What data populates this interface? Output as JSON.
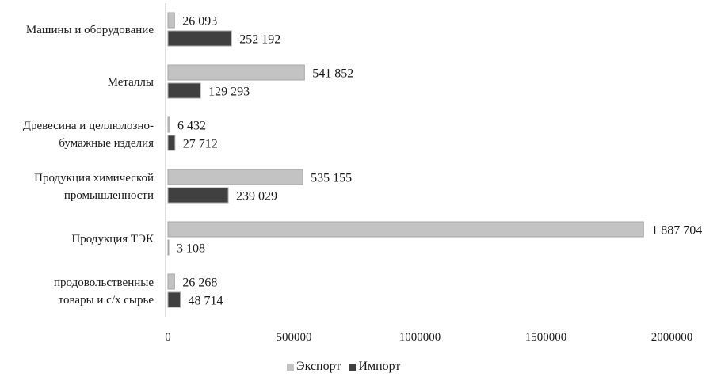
{
  "chart_data": {
    "type": "bar",
    "orientation": "horizontal",
    "categories": [
      [
        "Машины и оборудование"
      ],
      [
        "Металлы"
      ],
      [
        "Древесина и целлюлозно-",
        "бумажные изделия"
      ],
      [
        "Продукция химической",
        "промышленности"
      ],
      [
        "Продукция ТЭК"
      ],
      [
        "продовольственные",
        "товары и с/х сырье"
      ]
    ],
    "series": [
      {
        "name": "Экспорт",
        "color": "#c3c3c3",
        "values": [
          26093,
          541852,
          6432,
          535155,
          1887704,
          26268
        ],
        "labels": [
          "26 093",
          "541 852",
          "6 432",
          "535 155",
          "1 887 704",
          "26 268"
        ]
      },
      {
        "name": "Импорт",
        "color": "#404040",
        "values": [
          252192,
          129293,
          27712,
          239029,
          3108,
          48714
        ],
        "labels": [
          "252 192",
          "129 293",
          "27 712",
          "239 029",
          "3 108",
          "48 714"
        ]
      }
    ],
    "xlim": [
      0,
      2000000
    ],
    "xticks": [
      "0",
      "500000",
      "1000000",
      "1500000",
      "2000000"
    ],
    "legend_position": "bottom",
    "grid": false
  }
}
